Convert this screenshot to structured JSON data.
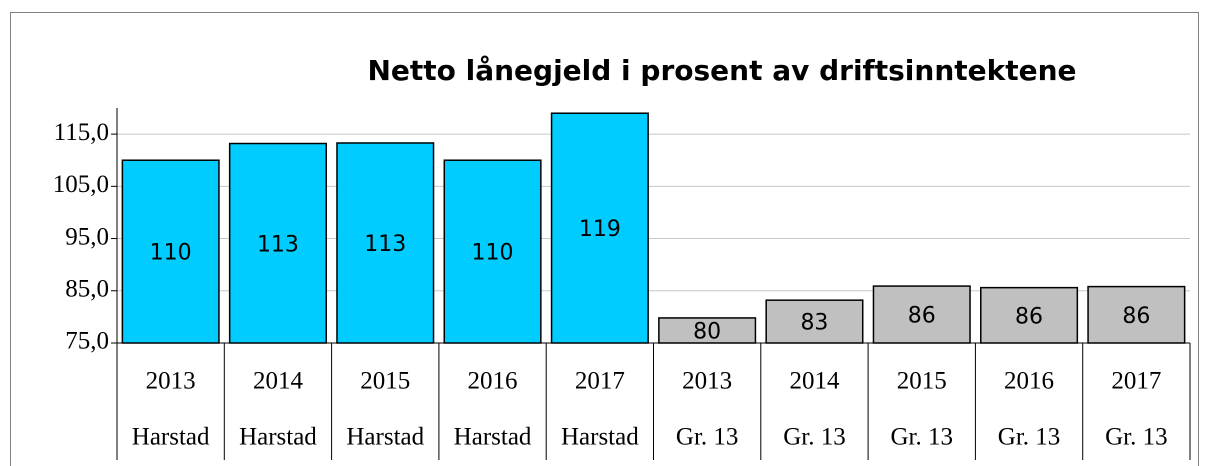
{
  "chart_data": {
    "type": "bar",
    "title": "Netto lånegjeld i prosent av driftsinntektene",
    "categories": [
      "2013",
      "2014",
      "2015",
      "2016",
      "2017",
      "2013",
      "2014",
      "2015",
      "2016",
      "2017"
    ],
    "category_groups": [
      "Harstad",
      "Harstad",
      "Harstad",
      "Harstad",
      "Harstad",
      "Gr. 13",
      "Gr. 13",
      "Gr. 13",
      "Gr. 13",
      "Gr. 13"
    ],
    "values": [
      110.0,
      113.2,
      113.3,
      110.0,
      119.0,
      79.8,
      83.2,
      85.9,
      85.6,
      85.8
    ],
    "value_labels": [
      "110",
      "113",
      "113",
      "110",
      "119",
      "80",
      "83",
      "86",
      "86",
      "86"
    ],
    "colors": [
      "#00ccff",
      "#00ccff",
      "#00ccff",
      "#00ccff",
      "#00ccff",
      "#c0c0c0",
      "#c0c0c0",
      "#c0c0c0",
      "#c0c0c0",
      "#c0c0c0"
    ],
    "ylim": [
      75,
      120
    ],
    "yticks": [
      {
        "value": 75,
        "label": "75,0"
      },
      {
        "value": 85,
        "label": "85,0"
      },
      {
        "value": 95,
        "label": "95,0"
      },
      {
        "value": 105,
        "label": "105,0"
      },
      {
        "value": 115,
        "label": "115,0"
      }
    ],
    "grid": true
  }
}
